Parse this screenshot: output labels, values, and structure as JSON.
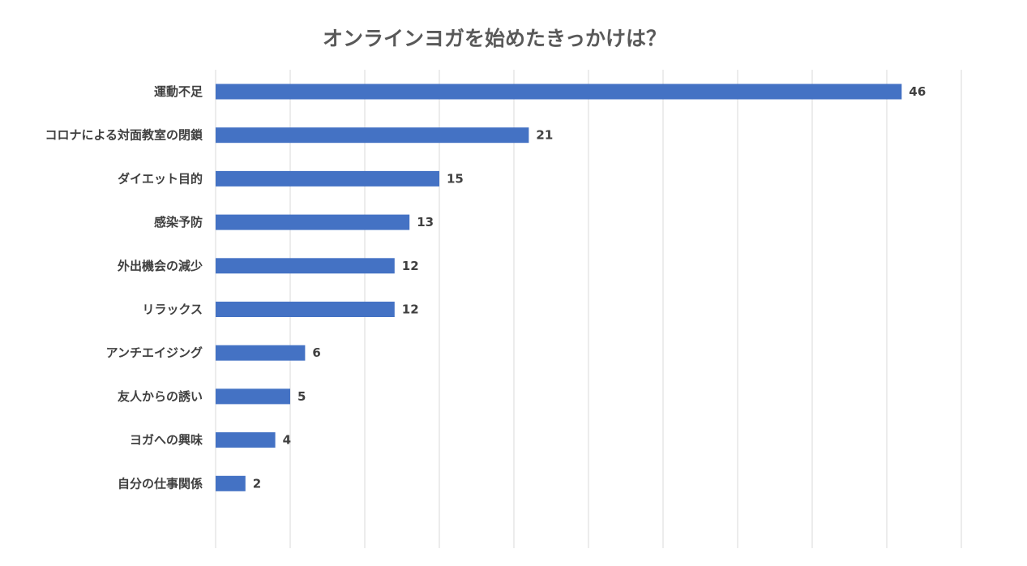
{
  "chart_data": {
    "type": "bar",
    "orientation": "horizontal",
    "title": "オンラインヨガを始めたきっかけは？",
    "categories": [
      "運動不足",
      "コロナによる対面教室の閉鎖",
      "ダイエット目的",
      "感染予防",
      "外出機会の減少",
      "リラックス",
      "アンチエイジング",
      "友人からの誘い",
      "ヨガへの興味",
      "自分の仕事関係"
    ],
    "values": [
      46,
      21,
      15,
      13,
      12,
      12,
      6,
      5,
      4,
      2
    ],
    "xlim": [
      0,
      50
    ],
    "x_tick_step": 5,
    "grid": true,
    "show_data_labels": true,
    "legend": "none",
    "colors": {
      "bar": "#4472c4",
      "grid": "#d9d9d9"
    }
  }
}
